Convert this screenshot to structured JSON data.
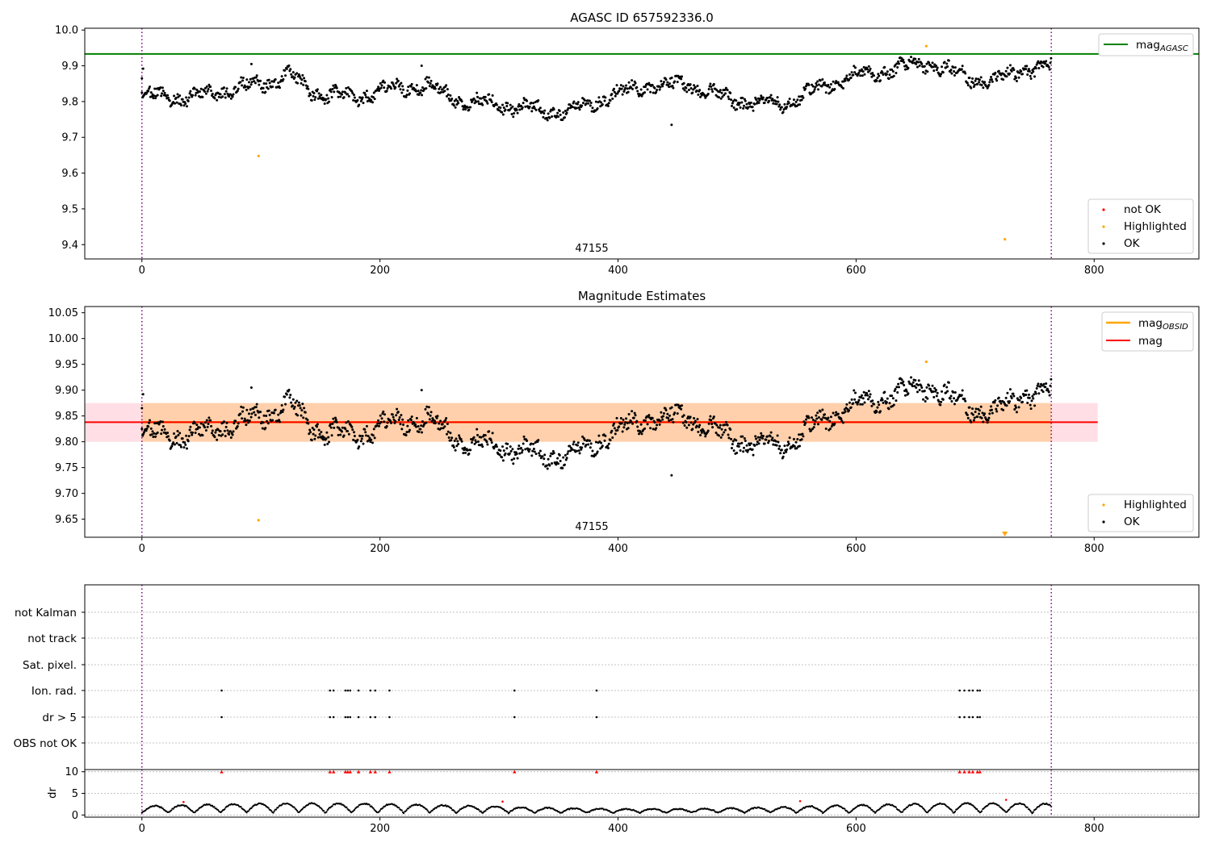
{
  "chart_data": [
    {
      "type": "scatter",
      "title": "AGASC ID 657592336.0",
      "xlim": [
        -48,
        888
      ],
      "ylim": [
        9.36,
        10.005
      ],
      "x_ticks": [
        0,
        200,
        400,
        600,
        800
      ],
      "y_ticks": [
        9.4,
        9.5,
        9.6,
        9.7,
        9.8,
        9.9,
        10.0
      ],
      "y_tick_labels": [
        "9.4",
        "9.5",
        "9.6",
        "9.7",
        "9.8",
        "9.9",
        "10.0"
      ],
      "reference_line": {
        "name": "mag_AGASC",
        "value": 9.933,
        "color": "#008000"
      },
      "obsid_boundaries": [
        0,
        764
      ],
      "obsid_label": {
        "text": "47155",
        "x": 382
      },
      "series": [
        {
          "name": "not OK",
          "color": "#ff0000",
          "points": []
        },
        {
          "name": "Highlighted",
          "color": "#ffa500",
          "points": [
            [
              98,
              9.648
            ],
            [
              659,
              9.955
            ],
            [
              725,
              9.415
            ]
          ]
        },
        {
          "name": "OK",
          "color": "#000000",
          "trend": [
            [
              0,
              9.82
            ],
            [
              40,
              9.81
            ],
            [
              70,
              9.83
            ],
            [
              100,
              9.85
            ],
            [
              125,
              9.875
            ],
            [
              140,
              9.83
            ],
            [
              175,
              9.81
            ],
            [
              210,
              9.835
            ],
            [
              240,
              9.845
            ],
            [
              270,
              9.8
            ],
            [
              300,
              9.79
            ],
            [
              335,
              9.775
            ],
            [
              360,
              9.775
            ],
            [
              380,
              9.8
            ],
            [
              405,
              9.825
            ],
            [
              430,
              9.845
            ],
            [
              460,
              9.85
            ],
            [
              490,
              9.81
            ],
            [
              520,
              9.79
            ],
            [
              545,
              9.8
            ],
            [
              565,
              9.83
            ],
            [
              590,
              9.865
            ],
            [
              615,
              9.88
            ],
            [
              645,
              9.9
            ],
            [
              665,
              9.905
            ],
            [
              690,
              9.87
            ],
            [
              715,
              9.855
            ],
            [
              735,
              9.885
            ],
            [
              764,
              9.9
            ]
          ],
          "outliers": [
            [
              0,
              9.865
            ],
            [
              1,
              9.892
            ],
            [
              92,
              9.905
            ],
            [
              235,
              9.9
            ],
            [
              445,
              9.735
            ]
          ]
        }
      ],
      "legend": {
        "position": "lower-right",
        "entries": [
          "not OK",
          "Highlighted",
          "OK"
        ]
      },
      "legend_lines": {
        "position": "upper-right",
        "entries": [
          {
            "main": "mag",
            "sub": "AGASC"
          }
        ]
      }
    },
    {
      "type": "scatter",
      "title": "Magnitude Estimates",
      "xlim": [
        -48,
        888
      ],
      "ylim": [
        9.615,
        10.062
      ],
      "x_ticks": [
        0,
        200,
        400,
        600,
        800
      ],
      "y_ticks": [
        9.65,
        9.7,
        9.75,
        9.8,
        9.85,
        9.9,
        9.95,
        10.0,
        10.05
      ],
      "y_tick_labels": [
        "9.65",
        "9.70",
        "9.75",
        "9.80",
        "9.85",
        "9.90",
        "9.95",
        "10.00",
        "10.05"
      ],
      "mag_line": {
        "name": "mag",
        "value": 9.838,
        "x_range": [
          -48,
          803
        ],
        "color": "#ff0000"
      },
      "mag_band": {
        "low": 9.8,
        "high": 9.875,
        "x_range": [
          -48,
          803
        ],
        "color": "#ffc0cb"
      },
      "mag_obsid": {
        "name": "mag_OBSID",
        "value": 9.838,
        "low": 9.8,
        "high": 9.875,
        "x_range": [
          0,
          764
        ],
        "color": "#ffa500"
      },
      "obsid_boundaries": [
        0,
        764
      ],
      "obsid_label": {
        "text": "47155",
        "x": 382
      },
      "series": [
        {
          "name": "Highlighted",
          "color": "#ffa500",
          "points": [
            [
              98,
              9.648
            ],
            [
              659,
              9.955
            ]
          ],
          "clipped_markers": [
            [
              725,
              9.62
            ]
          ]
        },
        {
          "name": "OK",
          "color": "#000000"
        }
      ],
      "legend": {
        "position": "lower-right",
        "entries": [
          "Highlighted",
          "OK"
        ]
      },
      "legend_lines": {
        "position": "upper-right",
        "entries": [
          {
            "main": "mag",
            "sub": "OBSID"
          },
          {
            "main": "mag",
            "sub": ""
          }
        ]
      }
    },
    {
      "type": "scatter",
      "title": "",
      "xlim": [
        -48,
        888
      ],
      "flag_rows": [
        "not Kalman",
        "not track",
        "Sat. pixel.",
        "Ion. rad.",
        "dr > 5",
        "OBS not OK"
      ],
      "flag_points": {
        "Ion. rad.": [
          67,
          158,
          161,
          171,
          173,
          175,
          182,
          192,
          196,
          208,
          313,
          382,
          687,
          691,
          695,
          698,
          702,
          704
        ],
        "dr > 5": [
          67,
          158,
          161,
          171,
          173,
          175,
          182,
          192,
          196,
          208,
          313,
          382,
          687,
          691,
          695,
          698,
          702,
          704
        ]
      },
      "obsid_boundaries": [
        0,
        764
      ]
    },
    {
      "type": "scatter",
      "title": "",
      "ylabel": "dr",
      "xlim": [
        -48,
        888
      ],
      "ylim": [
        -0.5,
        10.5
      ],
      "x_ticks": [
        0,
        200,
        400,
        600,
        800
      ],
      "y_ticks": [
        0,
        5,
        10
      ],
      "y_tick_labels": [
        "0",
        "5",
        "10"
      ],
      "dr_clip_value": 10,
      "dr_over_threshold_x": [
        67,
        158,
        161,
        171,
        173,
        175,
        182,
        192,
        196,
        208,
        313,
        382,
        687,
        691,
        695,
        698,
        702,
        704
      ],
      "dr_red_points": [
        [
          35,
          3
        ],
        [
          303,
          3.1
        ],
        [
          553,
          3.2
        ],
        [
          726,
          3.5
        ]
      ],
      "obsid_boundaries": [
        0,
        764
      ]
    }
  ]
}
